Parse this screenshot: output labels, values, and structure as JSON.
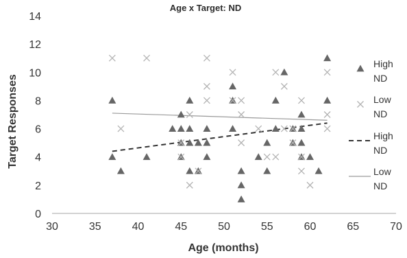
{
  "chart_data": {
    "type": "scatter",
    "title": "Age x  Target: ND",
    "xlabel": "Age (months)",
    "ylabel": "Target Responses",
    "xlim": [
      30,
      70
    ],
    "ylim": [
      0,
      14
    ],
    "x_ticks": [
      30,
      35,
      40,
      45,
      50,
      55,
      60,
      65,
      70
    ],
    "y_ticks": [
      0,
      2,
      4,
      6,
      8,
      10,
      12,
      14
    ],
    "grid": false,
    "legend_position": "right",
    "series": [
      {
        "name": "High ND",
        "marker": "triangle",
        "color": "#666666",
        "points": [
          [
            37,
            8
          ],
          [
            37,
            4
          ],
          [
            38,
            3
          ],
          [
            41,
            4
          ],
          [
            44,
            6
          ],
          [
            45,
            7
          ],
          [
            45,
            6
          ],
          [
            45,
            5
          ],
          [
            45,
            4
          ],
          [
            46,
            8
          ],
          [
            46,
            6
          ],
          [
            46,
            5
          ],
          [
            46,
            3
          ],
          [
            47,
            5
          ],
          [
            47,
            3
          ],
          [
            48,
            6
          ],
          [
            48,
            5
          ],
          [
            48,
            4
          ],
          [
            51,
            9
          ],
          [
            51,
            8
          ],
          [
            51,
            6
          ],
          [
            52,
            3
          ],
          [
            52,
            2
          ],
          [
            52,
            1
          ],
          [
            54,
            4
          ],
          [
            55,
            5
          ],
          [
            55,
            3
          ],
          [
            56,
            8
          ],
          [
            56,
            6
          ],
          [
            57,
            10
          ],
          [
            58,
            6
          ],
          [
            58,
            5
          ],
          [
            59,
            7
          ],
          [
            59,
            6
          ],
          [
            59,
            5
          ],
          [
            59,
            4
          ],
          [
            60,
            4
          ],
          [
            61,
            3
          ],
          [
            62,
            11
          ],
          [
            62,
            8
          ]
        ]
      },
      {
        "name": "Low ND",
        "marker": "x",
        "color": "#b3b3b3",
        "points": [
          [
            37,
            11
          ],
          [
            38,
            6
          ],
          [
            41,
            11
          ],
          [
            45,
            5
          ],
          [
            45,
            4
          ],
          [
            46,
            7
          ],
          [
            46,
            2
          ],
          [
            47,
            3
          ],
          [
            48,
            11
          ],
          [
            48,
            9
          ],
          [
            48,
            8
          ],
          [
            51,
            10
          ],
          [
            51,
            8
          ],
          [
            52,
            8
          ],
          [
            52,
            7
          ],
          [
            52,
            5
          ],
          [
            54,
            6
          ],
          [
            55,
            4
          ],
          [
            56,
            10
          ],
          [
            56,
            4
          ],
          [
            57,
            9
          ],
          [
            57,
            6
          ],
          [
            58,
            6
          ],
          [
            58,
            5
          ],
          [
            59,
            8
          ],
          [
            59,
            4
          ],
          [
            59,
            3
          ],
          [
            60,
            2
          ],
          [
            62,
            10
          ],
          [
            62,
            7
          ],
          [
            62,
            6
          ]
        ]
      }
    ],
    "trendlines": [
      {
        "name": "High ND",
        "style": "dashed",
        "color": "#333333",
        "x": [
          37,
          62
        ],
        "y": [
          4.4,
          6.4
        ]
      },
      {
        "name": "Low ND",
        "style": "solid",
        "color": "#999999",
        "x": [
          37,
          62
        ],
        "y": [
          7.1,
          6.6
        ]
      }
    ],
    "legend": [
      {
        "label_line1": "High",
        "label_line2": "ND",
        "symbol": "triangle",
        "color": "#666666"
      },
      {
        "label_line1": "Low",
        "label_line2": "ND",
        "symbol": "x",
        "color": "#b3b3b3"
      },
      {
        "label_line1": "High",
        "label_line2": "ND",
        "symbol": "dashed-line",
        "color": "#333333"
      },
      {
        "label_line1": "Low",
        "label_line2": "ND",
        "symbol": "solid-line",
        "color": "#999999"
      }
    ]
  }
}
